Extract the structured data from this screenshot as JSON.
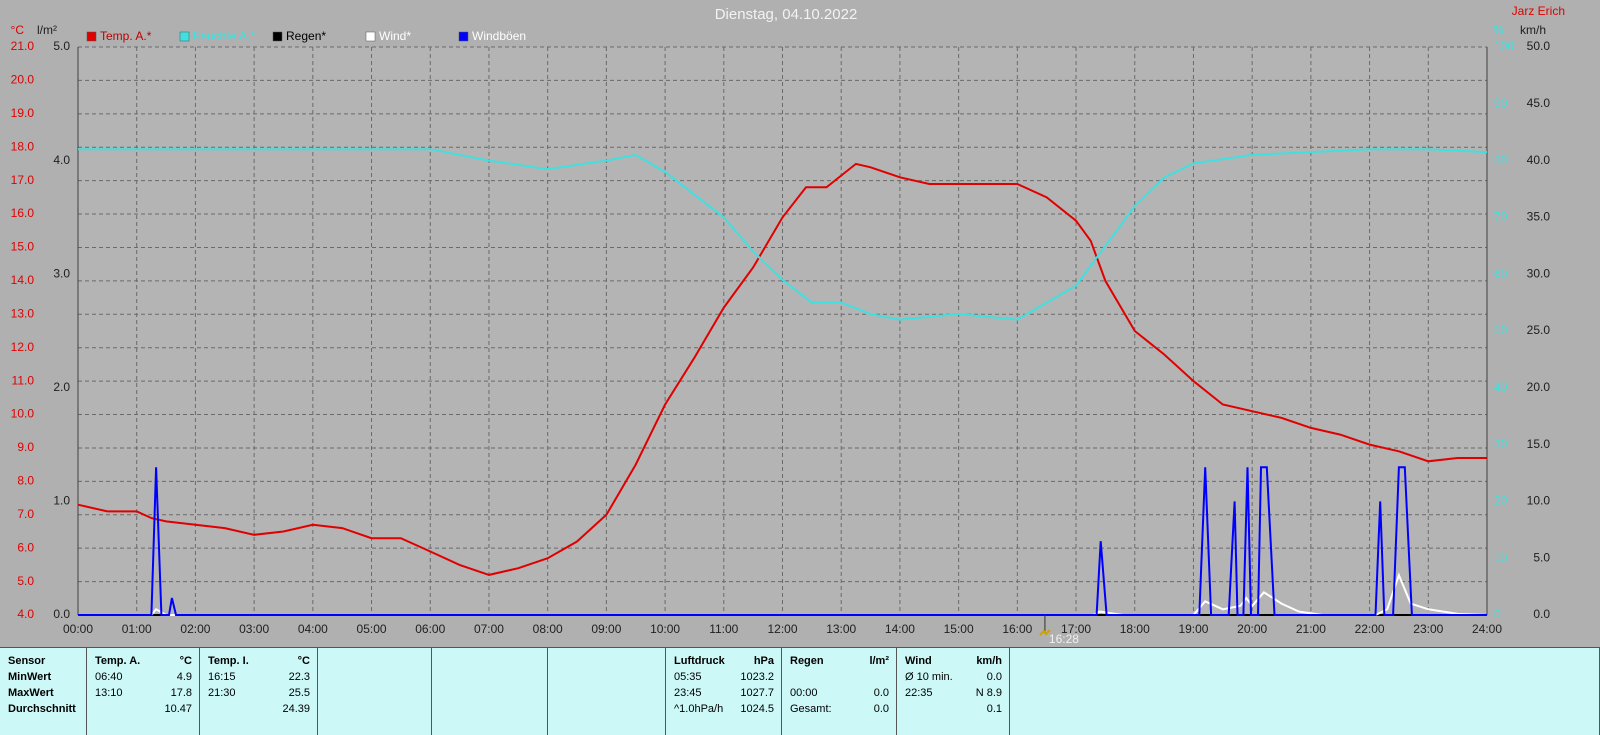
{
  "chart_data": {
    "type": "line",
    "title": "Dienstag, 04.10.2022",
    "author": "Jarz Erich",
    "xlim": [
      0,
      24
    ],
    "xticks": [
      {
        "value": 0,
        "label": "00:00"
      },
      {
        "value": 1,
        "label": "01:00"
      },
      {
        "value": 2,
        "label": "02:00"
      },
      {
        "value": 3,
        "label": "03:00"
      },
      {
        "value": 4,
        "label": "04:00"
      },
      {
        "value": 5,
        "label": "05:00"
      },
      {
        "value": 6,
        "label": "06:00"
      },
      {
        "value": 7,
        "label": "07:00"
      },
      {
        "value": 8,
        "label": "08:00"
      },
      {
        "value": 9,
        "label": "09:00"
      },
      {
        "value": 10,
        "label": "10:00"
      },
      {
        "value": 11,
        "label": "11:00"
      },
      {
        "value": 12,
        "label": "12:00"
      },
      {
        "value": 13,
        "label": "13:00"
      },
      {
        "value": 14,
        "label": "14:00"
      },
      {
        "value": 15,
        "label": "15:00"
      },
      {
        "value": 16,
        "label": "16:00"
      },
      {
        "value": 17,
        "label": "17:00"
      },
      {
        "value": 18,
        "label": "18:00"
      },
      {
        "value": 19,
        "label": "19:00"
      },
      {
        "value": 20,
        "label": "20:00"
      },
      {
        "value": 21,
        "label": "21:00"
      },
      {
        "value": 22,
        "label": "22:00"
      },
      {
        "value": 23,
        "label": "23:00"
      },
      {
        "value": 24,
        "label": "24:00"
      }
    ],
    "y_label": "°C",
    "ylim": [
      4,
      21
    ],
    "yticks": [
      {
        "value": 4,
        "label": "4.0"
      },
      {
        "value": 5,
        "label": "5.0"
      },
      {
        "value": 6,
        "label": "6.0"
      },
      {
        "value": 7,
        "label": "7.0"
      },
      {
        "value": 8,
        "label": "8.0"
      },
      {
        "value": 9,
        "label": "9.0"
      },
      {
        "value": 10,
        "label": "10.0"
      },
      {
        "value": 11,
        "label": "11.0"
      },
      {
        "value": 12,
        "label": "12.0"
      },
      {
        "value": 13,
        "label": "13.0"
      },
      {
        "value": 14,
        "label": "14.0"
      },
      {
        "value": 15,
        "label": "15.0"
      },
      {
        "value": 16,
        "label": "16.0"
      },
      {
        "value": 17,
        "label": "17.0"
      },
      {
        "value": 18,
        "label": "18.0"
      },
      {
        "value": 19,
        "label": "19.0"
      },
      {
        "value": 20,
        "label": "20.0"
      },
      {
        "value": 21,
        "label": "21.0"
      }
    ],
    "y4_label": "l/m²",
    "y4lim": [
      0,
      5
    ],
    "y4ticks": [
      {
        "value": 0,
        "label": "0.0"
      },
      {
        "value": 1,
        "label": "1.0"
      },
      {
        "value": 2,
        "label": "2.0"
      },
      {
        "value": 3,
        "label": "3.0"
      },
      {
        "value": 4,
        "label": "4.0"
      },
      {
        "value": 5,
        "label": "5.0"
      }
    ],
    "y2_label": "%",
    "y2lim": [
      0,
      100
    ],
    "y2ticks": [
      0,
      10,
      20,
      30,
      40,
      50,
      60,
      70,
      80,
      90,
      100
    ],
    "y3_label": "km/h",
    "y3lim": [
      0,
      50
    ],
    "y3ticks": [
      {
        "value": 0,
        "label": "0.0"
      },
      {
        "value": 5,
        "label": "5.0"
      },
      {
        "value": 10,
        "label": "10.0"
      },
      {
        "value": 15,
        "label": "15.0"
      },
      {
        "value": 20,
        "label": "20.0"
      },
      {
        "value": 25,
        "label": "25.0"
      },
      {
        "value": 30,
        "label": "30.0"
      },
      {
        "value": 35,
        "label": "35.0"
      },
      {
        "value": 40,
        "label": "40.0"
      },
      {
        "value": 45,
        "label": "45.0"
      },
      {
        "value": 50,
        "label": "50.0"
      }
    ],
    "grid": true,
    "series": [
      {
        "name": "Temp. A.*",
        "color": "#e00000",
        "axis": "y",
        "x": [
          0,
          0.5,
          1,
          1.25,
          1.5,
          2,
          2.5,
          3,
          3.5,
          4,
          4.5,
          5,
          5.5,
          6,
          6.5,
          7,
          7.5,
          8,
          8.5,
          9,
          9.5,
          10,
          10.5,
          11,
          11.5,
          12,
          12.4,
          12.75,
          13.25,
          13.5,
          14,
          14.5,
          15,
          15.5,
          16,
          16.5,
          17,
          17.25,
          17.5,
          18,
          18.5,
          19,
          19.5,
          20,
          20.5,
          21,
          21.5,
          22,
          22.5,
          23,
          23.5,
          24
        ],
        "values": [
          7.3,
          7.1,
          7.1,
          6.9,
          6.8,
          6.7,
          6.6,
          6.4,
          6.5,
          6.7,
          6.6,
          6.3,
          6.3,
          5.9,
          5.5,
          5.2,
          5.4,
          5.7,
          6.2,
          7.0,
          8.5,
          10.3,
          11.7,
          13.2,
          14.4,
          15.9,
          16.8,
          16.8,
          17.5,
          17.4,
          17.1,
          16.9,
          16.9,
          16.9,
          16.9,
          16.5,
          15.8,
          15.2,
          14.0,
          12.5,
          11.8,
          11.0,
          10.3,
          10.1,
          9.9,
          9.6,
          9.4,
          9.1,
          8.9,
          8.6,
          8.7,
          8.7
        ]
      },
      {
        "name": "Feuchte A.*",
        "color": "#40e0e0",
        "axis": "y2",
        "x": [
          0,
          1,
          2,
          3,
          4,
          5,
          6,
          7,
          8,
          9,
          9.5,
          10,
          11,
          11.5,
          12,
          12.5,
          13,
          13.5,
          14,
          15,
          16,
          16.5,
          17,
          17.5,
          18,
          18.5,
          19,
          20,
          21,
          22,
          23,
          24
        ],
        "values": [
          82,
          82,
          82,
          82,
          82,
          82,
          82,
          80,
          78.5,
          80,
          81,
          78,
          70,
          64,
          59,
          55,
          55,
          53,
          52,
          53,
          52,
          55,
          58,
          65,
          72,
          77,
          79.5,
          81,
          81.5,
          82,
          82,
          81.5
        ]
      },
      {
        "name": "Regen*",
        "color": "#000000",
        "axis": "y4",
        "x": [
          0,
          24
        ],
        "values": [
          0,
          0
        ]
      },
      {
        "name": "Wind*",
        "color": "#ffffff",
        "axis": "y3",
        "x": [
          0,
          1.25,
          1.33,
          1.5,
          17.3,
          17.4,
          17.8,
          19.0,
          19.2,
          19.5,
          19.8,
          19.9,
          20.0,
          20.2,
          20.5,
          20.8,
          21.2,
          22.1,
          22.3,
          22.5,
          22.7,
          23.0,
          23.5,
          24
        ],
        "values": [
          0,
          0,
          0.5,
          0,
          0,
          0.3,
          0,
          0,
          1.2,
          0.5,
          0.8,
          1.5,
          0.8,
          2,
          1,
          0.3,
          0,
          0,
          0.5,
          3.5,
          1,
          0.5,
          0.1,
          0
        ]
      },
      {
        "name": "Windböen",
        "color": "#0000ff",
        "axis": "y3",
        "x": [
          0,
          1.25,
          1.33,
          1.42,
          1.55,
          1.6,
          1.67,
          17.35,
          17.42,
          17.52,
          19.1,
          19.2,
          19.3,
          19.6,
          19.7,
          19.75,
          19.85,
          19.92,
          19.98,
          20.1,
          20.15,
          20.25,
          20.38,
          22.1,
          22.18,
          22.25,
          22.4,
          22.5,
          22.6,
          22.72,
          24
        ],
        "values": [
          0,
          0,
          13,
          0,
          0,
          1.5,
          0,
          0,
          6.5,
          0,
          0,
          13,
          0,
          0,
          10,
          0,
          0,
          13,
          0,
          0,
          13,
          13,
          0,
          0,
          10,
          0,
          0,
          13,
          13,
          0,
          0
        ]
      }
    ],
    "marker": {
      "x": 16.47,
      "label": "16:28"
    }
  },
  "stats_table": {
    "columns": [
      {
        "header": {
          "l": "Sensor"
        },
        "cells": [
          {
            "l": "MinWert"
          },
          {
            "l": "MaxWert"
          },
          {
            "l": "Durchschnitt"
          }
        ]
      },
      {
        "header": {
          "l": "Temp. A.",
          "r": "°C"
        },
        "cells": [
          {
            "l": "06:40",
            "r": "4.9"
          },
          {
            "l": "13:10",
            "r": "17.8"
          },
          {
            "r": "10.47"
          }
        ]
      },
      {
        "header": {
          "l": "Temp. I.",
          "r": "°C"
        },
        "cells": [
          {
            "l": "16:15",
            "r": "22.3"
          },
          {
            "l": "21:30",
            "r": "25.5"
          },
          {
            "r": "24.39"
          }
        ]
      },
      {
        "header": {
          "l": "Luftdruck",
          "r": "hPa"
        },
        "cells": [
          {
            "l": "05:35",
            "r": "1023.2"
          },
          {
            "l": "23:45",
            "r": "1027.7"
          },
          {
            "l": "^1.0hPa/h",
            "r": "1024.5"
          }
        ]
      },
      {
        "header": {
          "l": "Regen",
          "r": "l/m²"
        },
        "cells": [
          {},
          {
            "l": "00:00",
            "r": "0.0"
          },
          {
            "l": "Gesamt:",
            "r": "0.0"
          }
        ]
      },
      {
        "header": {
          "l": "Wind",
          "r": "km/h"
        },
        "cells": [
          {
            "l": "Ø 10 min.",
            "r": "0.0"
          },
          {
            "l": "22:35",
            "r": "N 8.9"
          },
          {
            "r": "0.1"
          }
        ]
      }
    ]
  }
}
